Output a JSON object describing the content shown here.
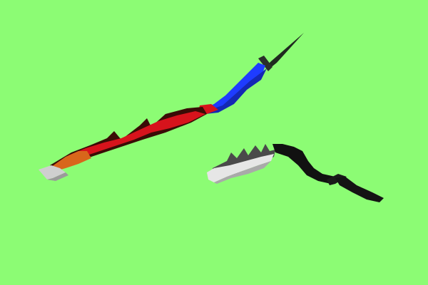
{
  "scene": {
    "background_color": "#8cfc74",
    "objects": [
      {
        "name": "colored-serrated-blade",
        "colors": {
          "tip": "#1f2a1f",
          "guard": "#2a2f2a",
          "twisted_body": "#1e3cff",
          "body_red": "#d7131c",
          "body_dark": "#3a0c06",
          "body_orange": "#d8661b",
          "handle_light": "#cfcfcf",
          "handle_grey": "#9a9a9a"
        }
      },
      {
        "name": "grey-serrated-blade",
        "colors": {
          "blade_light": "#e6e6e6",
          "blade_mid": "#a9a9a9",
          "blade_dark": "#4a4a4a",
          "twist": "#111111",
          "guard": "#1a1a1a",
          "handle": "#141414"
        }
      }
    ]
  }
}
